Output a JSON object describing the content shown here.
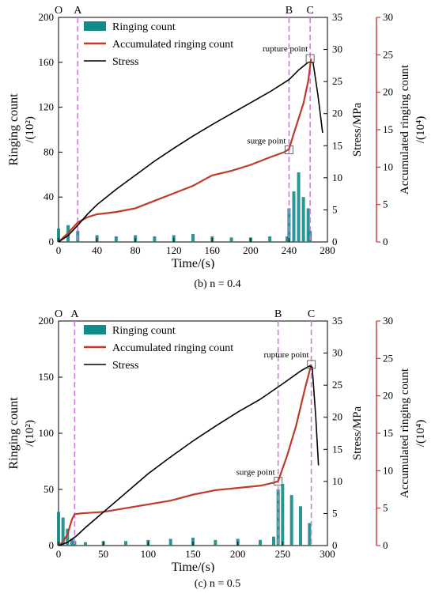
{
  "chart_data": [
    {
      "type": "line",
      "caption": "(b) n = 0.4",
      "xlabel": "Time/(s)",
      "ylabel_line1": "Ringing count",
      "ylabel_line2": "/(10²)",
      "y2label": "Stress/MPa",
      "y3label_line1": "Accumulated ringing count",
      "y3label_line2": "/(10⁴)",
      "xlim": [
        0,
        280
      ],
      "ylim": [
        0,
        200
      ],
      "y2lim": [
        0,
        35
      ],
      "y3lim": [
        0,
        30
      ],
      "xticks": [
        0,
        40,
        80,
        120,
        160,
        200,
        240,
        280
      ],
      "yticks": [
        0,
        40,
        80,
        120,
        160,
        200
      ],
      "y2ticks": [
        0,
        5,
        10,
        15,
        20,
        25,
        30,
        35
      ],
      "y3ticks": [
        0,
        5,
        10,
        15,
        20,
        25,
        30
      ],
      "legend": [
        "Ringing count",
        "Accumulated ringing count",
        "Stress"
      ],
      "legend_position": "top-left",
      "phase_lines": [
        {
          "label": "O",
          "x": 0
        },
        {
          "label": "A",
          "x": 20
        },
        {
          "label": "B",
          "x": 240
        },
        {
          "label": "C",
          "x": 262
        }
      ],
      "annotations": [
        {
          "text": "surge point",
          "x": 240,
          "y3": 12.3
        },
        {
          "text": "rupture point",
          "x": 262,
          "y3": 24.5
        }
      ],
      "series": [
        {
          "name": "Stress",
          "axis": "y2",
          "color": "#000000",
          "x": [
            0,
            10,
            20,
            30,
            40,
            60,
            80,
            100,
            120,
            140,
            160,
            180,
            200,
            220,
            240,
            250,
            260,
            265,
            270,
            275
          ],
          "y": [
            0,
            1.0,
            2.6,
            4.3,
            5.8,
            8.2,
            10.4,
            12.6,
            14.6,
            16.5,
            18.3,
            20.0,
            21.7,
            23.4,
            25.3,
            26.8,
            28.0,
            28.0,
            23.0,
            17.0
          ]
        },
        {
          "name": "Accumulated ringing count",
          "axis": "y3",
          "color": "#c0392b",
          "x": [
            0,
            10,
            20,
            30,
            40,
            60,
            80,
            100,
            120,
            140,
            160,
            180,
            200,
            220,
            235,
            240,
            245,
            250,
            255,
            260,
            263
          ],
          "y": [
            0,
            1.2,
            2.6,
            3.3,
            3.7,
            4.0,
            4.5,
            5.5,
            6.5,
            7.5,
            8.9,
            9.5,
            10.3,
            11.3,
            12.0,
            12.4,
            14.5,
            16.5,
            18.5,
            21.5,
            24.5
          ]
        },
        {
          "name": "Ringing count",
          "axis": "y",
          "type": "bar",
          "color": "#138a8a",
          "x": [
            0,
            10,
            20,
            40,
            60,
            80,
            100,
            120,
            140,
            160,
            180,
            200,
            220,
            238,
            240,
            245,
            250,
            255,
            260,
            262
          ],
          "y": [
            12,
            15,
            10,
            6,
            5,
            6,
            5,
            6,
            7,
            5,
            4,
            4,
            5,
            5,
            30,
            45,
            62,
            40,
            30,
            10
          ]
        }
      ]
    },
    {
      "type": "line",
      "caption": "(c) n = 0.5",
      "xlabel": "Time/(s)",
      "ylabel_line1": "Ringing count",
      "ylabel_line2": "/(10²)",
      "y2label": "Stress/MPa",
      "y3label_line1": "Accumulated ringing count",
      "y3label_line2": "/(10⁴)",
      "xlim": [
        0,
        300
      ],
      "ylim": [
        0,
        200
      ],
      "y2lim": [
        0,
        35
      ],
      "y3lim": [
        0,
        30
      ],
      "xticks": [
        0,
        50,
        100,
        150,
        200,
        250,
        300
      ],
      "yticks": [
        0,
        50,
        100,
        150,
        200
      ],
      "y2ticks": [
        0,
        5,
        10,
        15,
        20,
        25,
        30,
        35
      ],
      "y3ticks": [
        0,
        5,
        10,
        15,
        20,
        25,
        30
      ],
      "legend": [
        "Ringing count",
        "Accumulated ringing count",
        "Stress"
      ],
      "legend_position": "top-left",
      "phase_lines": [
        {
          "label": "O",
          "x": 0
        },
        {
          "label": "A",
          "x": 18
        },
        {
          "label": "B",
          "x": 245
        },
        {
          "label": "C",
          "x": 282
        }
      ],
      "annotations": [
        {
          "text": "surge point",
          "x": 245,
          "y3": 8.6
        },
        {
          "text": "rupture point",
          "x": 282,
          "y3": 24.2
        }
      ],
      "series": [
        {
          "name": "Stress",
          "axis": "y2",
          "color": "#000000",
          "x": [
            0,
            10,
            20,
            30,
            50,
            75,
            100,
            125,
            150,
            175,
            200,
            225,
            250,
            270,
            280,
            283,
            287,
            290
          ],
          "y": [
            0,
            0.5,
            1.5,
            2.8,
            5.2,
            8.2,
            11.2,
            13.8,
            16.3,
            18.6,
            20.8,
            22.8,
            25.2,
            27.2,
            28.0,
            27.8,
            20.0,
            12.5
          ]
        },
        {
          "name": "Accumulated ringing count",
          "axis": "y3",
          "color": "#c0392b",
          "x": [
            0,
            5,
            10,
            15,
            18,
            25,
            50,
            75,
            100,
            125,
            150,
            175,
            200,
            225,
            240,
            245,
            255,
            265,
            275,
            282
          ],
          "y": [
            0,
            0.5,
            1.5,
            3.5,
            4.2,
            4.3,
            4.5,
            5.0,
            5.5,
            6.0,
            6.8,
            7.4,
            7.7,
            8.0,
            8.4,
            8.6,
            12.0,
            16.0,
            21.0,
            24.2
          ]
        },
        {
          "name": "Ringing count",
          "axis": "y",
          "type": "bar",
          "color": "#138a8a",
          "x": [
            0,
            5,
            10,
            15,
            18,
            30,
            50,
            75,
            100,
            125,
            150,
            175,
            200,
            225,
            240,
            245,
            250,
            260,
            270,
            280
          ],
          "y": [
            30,
            25,
            15,
            6,
            4,
            3,
            4,
            4,
            5,
            6,
            7,
            5,
            6,
            5,
            8,
            50,
            55,
            45,
            35,
            20
          ]
        }
      ]
    }
  ]
}
